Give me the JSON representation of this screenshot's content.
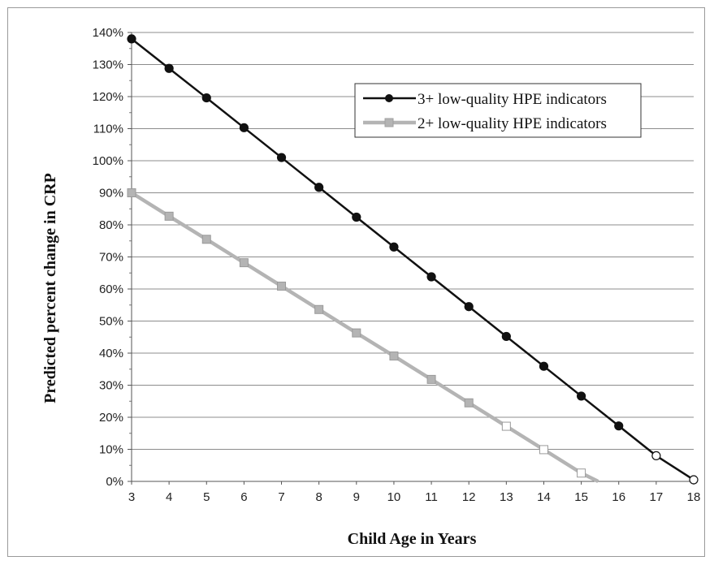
{
  "chart_data": {
    "type": "line",
    "title": "",
    "xlabel": "Child Age in Years",
    "ylabel": "Predicted percent change in CRP",
    "x": [
      3,
      4,
      5,
      6,
      7,
      8,
      9,
      10,
      11,
      12,
      13,
      14,
      15,
      16,
      17,
      18
    ],
    "xlim": [
      3,
      18
    ],
    "ylim": [
      0,
      140
    ],
    "y_ticks": [
      0,
      10,
      20,
      30,
      40,
      50,
      60,
      70,
      80,
      90,
      100,
      110,
      120,
      130,
      140
    ],
    "y_tick_suffix": "%",
    "grid": "horizontal",
    "legend_position": "upper-right",
    "series": [
      {
        "name": "3+ low-quality HPE indicators",
        "color": "#111111",
        "marker": "circle",
        "x": [
          3,
          4,
          5,
          6,
          7,
          8,
          9,
          10,
          11,
          12,
          13,
          14,
          15,
          16,
          17,
          18
        ],
        "values": [
          138,
          128.8,
          119.6,
          110.3,
          101,
          91.7,
          82.4,
          73.1,
          63.8,
          54.5,
          45.2,
          35.9,
          26.6,
          17.3,
          8,
          0.5
        ],
        "open_marker_x": [
          17,
          18
        ],
        "end_x": 18
      },
      {
        "name": "2+ low-quality HPE indicators",
        "color": "#b4b4b4",
        "marker": "square",
        "x": [
          3,
          4,
          5,
          6,
          7,
          8,
          9,
          10,
          11,
          12,
          13,
          14,
          15
        ],
        "values": [
          90,
          82.7,
          75.5,
          68.2,
          60.9,
          53.6,
          46.3,
          39.1,
          31.8,
          24.5,
          17.2,
          9.9,
          2.6
        ],
        "open_marker_x": [
          13,
          14,
          15
        ],
        "end_x": 15.45,
        "end_value": 0
      }
    ]
  }
}
